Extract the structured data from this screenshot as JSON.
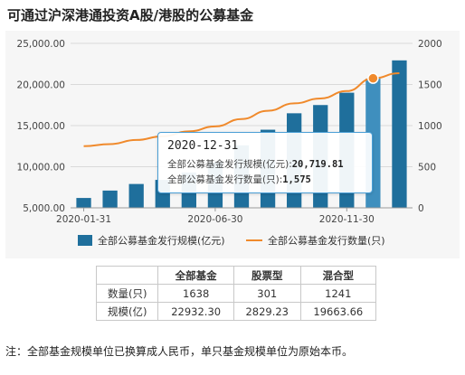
{
  "title": "可通过沪深港通投资A股/港股的公募基金",
  "chart_data": {
    "type": "bar+line",
    "left_axis": {
      "ticks": [
        "5,000.00",
        "10,000.00",
        "15,000.00",
        "20,000.00",
        "25,000.00"
      ],
      "range": [
        5000,
        25000
      ]
    },
    "right_axis": {
      "ticks": [
        "0",
        "500",
        "1000",
        "1500",
        "2000"
      ],
      "range": [
        0,
        2000
      ]
    },
    "x_ticks": [
      "2020-01-31",
      "2020-06-30",
      "2020-11-30"
    ],
    "months": [
      "2020-01",
      "2020-02",
      "2020-03",
      "2020-04",
      "2020-05",
      "2020-06",
      "2020-07",
      "2020-08",
      "2020-09",
      "2020-10",
      "2020-11",
      "2020-12",
      "2021-01"
    ],
    "series": [
      {
        "name": "全部公募基金发行规模(亿元)",
        "type": "bar",
        "axis": "left",
        "color": "#1f6f9c",
        "values": [
          6200,
          7100,
          7900,
          8400,
          9300,
          10600,
          12600,
          14500,
          16500,
          17500,
          19000,
          20719.81,
          22932.3
        ]
      },
      {
        "name": "全部公募基金发行数量(只)",
        "type": "line",
        "axis": "right",
        "color": "#f08a2c",
        "values": [
          750,
          775,
          825,
          870,
          930,
          990,
          1080,
          1180,
          1270,
          1330,
          1420,
          1575,
          1638
        ]
      }
    ],
    "highlight_index": 11
  },
  "tooltip": {
    "date": "2020-12-31",
    "row1_label": "全部公募基金发行规模(亿元):",
    "row1_value": "20,719.81",
    "row2_label": "全部公募基金发行数量(只):",
    "row2_value": "1,575"
  },
  "table": {
    "headers": [
      "",
      "全部基金",
      "股票型",
      "混合型"
    ],
    "rows": [
      [
        "数量(只)",
        "1638",
        "301",
        "1241"
      ],
      [
        "规模(亿)",
        "22932.30",
        "2829.23",
        "19663.66"
      ]
    ]
  },
  "note": "注：全部基金规模单位已换算成人民币，单只基金规模单位为原始本币。"
}
